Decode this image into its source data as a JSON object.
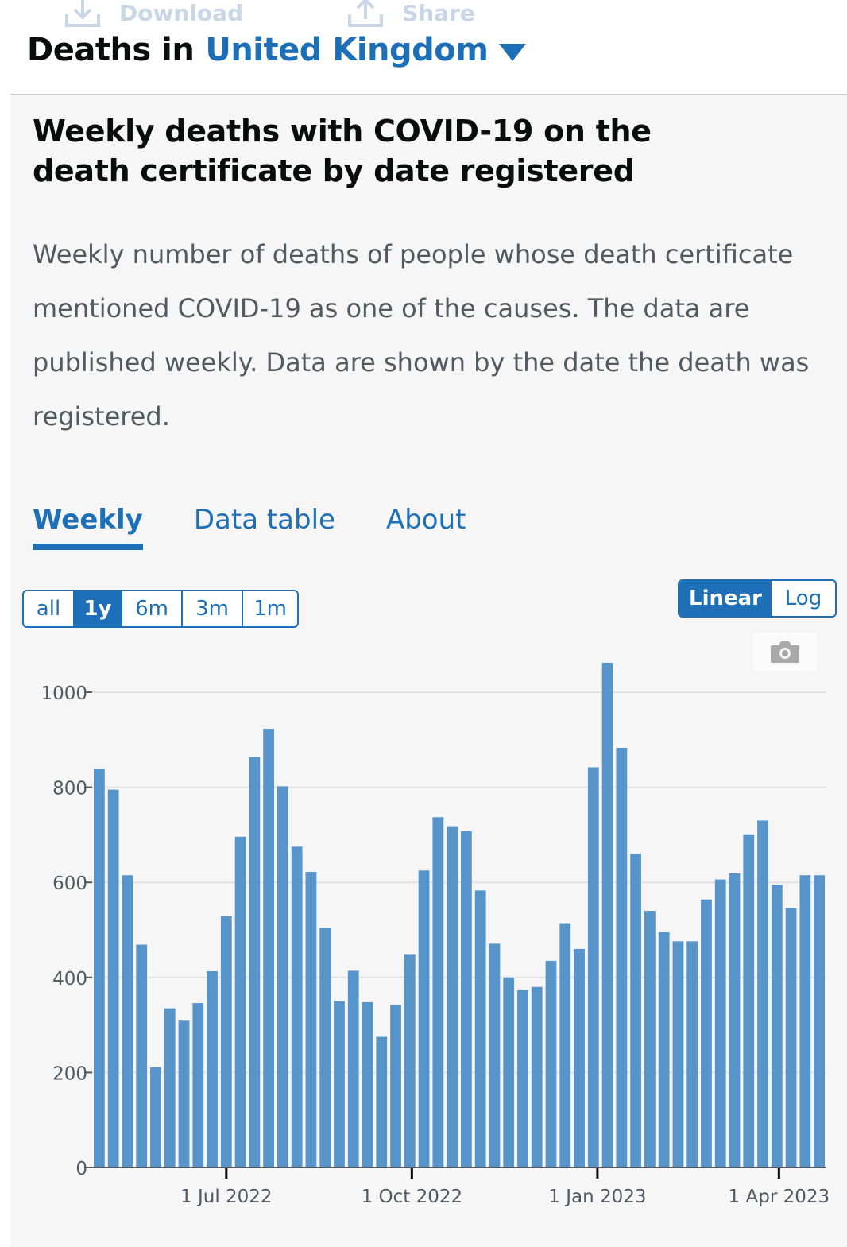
{
  "toolbar": {
    "download_label": "Download",
    "share_label": "Share"
  },
  "header": {
    "title_prefix": "Deaths in",
    "area": "United Kingdom"
  },
  "card": {
    "title": "Weekly deaths with COVID-19 on the death certificate by date registered",
    "description": "Weekly number of deaths of people whose death certificate mentioned COVID-19 as one of the causes. The data are published weekly. Data are shown by the date the death was registered."
  },
  "tabs": [
    "Weekly",
    "Data table",
    "About"
  ],
  "range_buttons": [
    "all",
    "1y",
    "6m",
    "3m",
    "1m"
  ],
  "scale_buttons": [
    "Linear",
    "Log"
  ],
  "colors": {
    "accent": "#1d70b8",
    "bar": "#5694ca"
  },
  "chart_data": {
    "type": "bar",
    "title": "",
    "xlabel": "",
    "ylabel": "",
    "ylim": [
      0,
      1050
    ],
    "yticks": [
      0,
      200,
      400,
      600,
      800,
      1000
    ],
    "xticks": [
      {
        "date": "2022-07-01",
        "label": "1 Jul 2022"
      },
      {
        "date": "2022-10-01",
        "label": "1 Oct 2022"
      },
      {
        "date": "2023-01-01",
        "label": "1 Jan 2023"
      },
      {
        "date": "2023-04-01",
        "label": "1 Apr 2023"
      }
    ],
    "grid": true,
    "series": [
      {
        "x": [
          "2022-04-29",
          "2022-05-06",
          "2022-05-13",
          "2022-05-20",
          "2022-05-27",
          "2022-06-03",
          "2022-06-10",
          "2022-06-17",
          "2022-06-24",
          "2022-07-01",
          "2022-07-08",
          "2022-07-15",
          "2022-07-22",
          "2022-07-29",
          "2022-08-05",
          "2022-08-12",
          "2022-08-19",
          "2022-08-26",
          "2022-09-02",
          "2022-09-09",
          "2022-09-16",
          "2022-09-23",
          "2022-09-30",
          "2022-10-07",
          "2022-10-14",
          "2022-10-21",
          "2022-10-28",
          "2022-11-04",
          "2022-11-11",
          "2022-11-18",
          "2022-11-25",
          "2022-12-02",
          "2022-12-09",
          "2022-12-16",
          "2022-12-23",
          "2022-12-30",
          "2023-01-06",
          "2023-01-13",
          "2023-01-20",
          "2023-01-27",
          "2023-02-03",
          "2023-02-10",
          "2023-02-17",
          "2023-02-24",
          "2023-03-03",
          "2023-03-10",
          "2023-03-17",
          "2023-03-24",
          "2023-03-31",
          "2023-04-07",
          "2023-04-14",
          "2023-04-21"
        ],
        "values": [
          838,
          795,
          615,
          469,
          211,
          335,
          309,
          346,
          413,
          529,
          696,
          864,
          923,
          802,
          675,
          622,
          505,
          350,
          414,
          348,
          275,
          343,
          449,
          625,
          737,
          718,
          708,
          583,
          471,
          400,
          373,
          380,
          435,
          514,
          460,
          842,
          1062,
          883,
          660,
          540,
          495,
          476,
          476,
          564,
          606,
          619,
          701,
          730,
          595,
          546,
          615,
          615
        ]
      }
    ]
  }
}
